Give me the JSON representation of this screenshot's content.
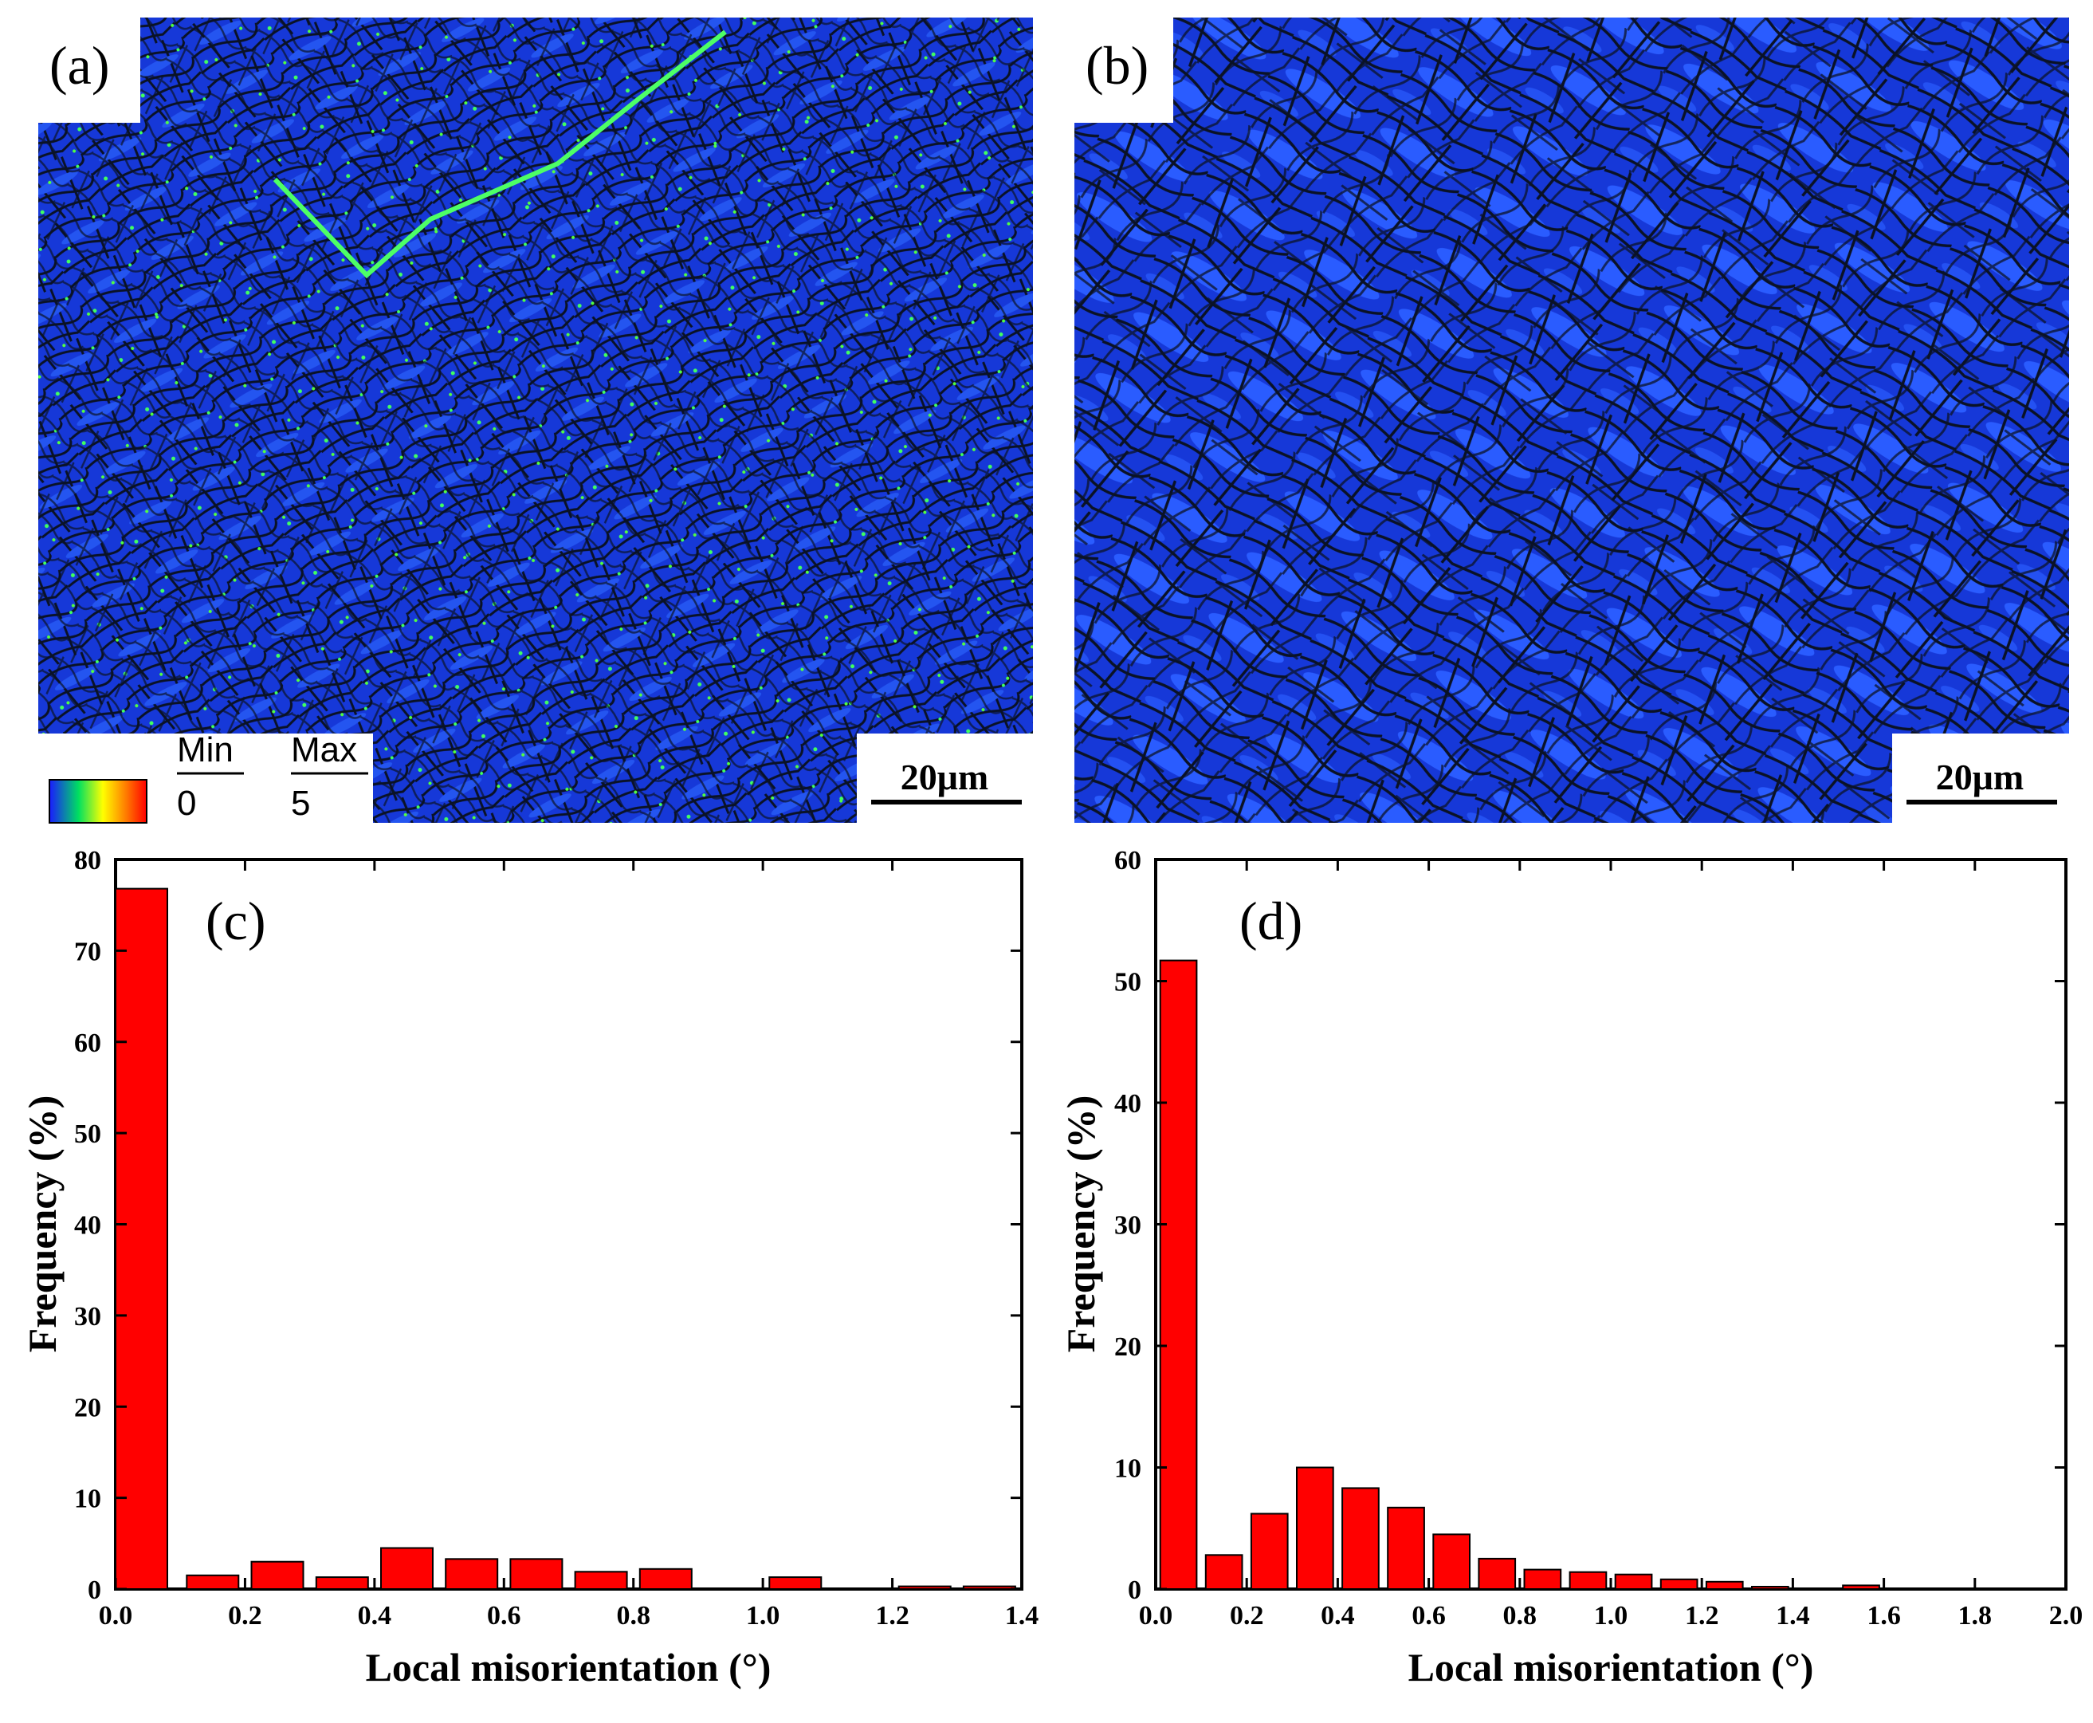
{
  "maps": [
    {
      "label": "(a)",
      "scale_bar": "20μm"
    },
    {
      "label": "(b)",
      "scale_bar": "20μm"
    }
  ],
  "legend": {
    "min_label": "Min",
    "max_label": "Max",
    "min_value": "0",
    "max_value": "5",
    "colors": [
      "#1a1aff",
      "#00e060",
      "#ffff00",
      "#ff8000",
      "#ff0000"
    ]
  },
  "colors": {
    "bar_fill": "#ff0000",
    "bar_stroke": "#000000",
    "map_base": "#1638d8",
    "map_grain": "#2455f0",
    "map_boundary": "#0a1226",
    "map_highlight": "#40ff60"
  },
  "chart_data": [
    {
      "type": "bar",
      "panel_label": "(c)",
      "title": "",
      "xlabel": "Local misorientation (°)",
      "ylabel": "Frequency (%)",
      "xlim": [
        0.0,
        1.4
      ],
      "ylim": [
        0,
        80
      ],
      "x_ticks": [
        "0.0",
        "0.2",
        "0.4",
        "0.6",
        "0.8",
        "1.0",
        "1.2",
        "1.4"
      ],
      "y_ticks": [
        "0",
        "10",
        "20",
        "30",
        "40",
        "50",
        "60",
        "70",
        "80"
      ],
      "bin_width": 0.08,
      "x": [
        0.04,
        0.15,
        0.25,
        0.35,
        0.45,
        0.55,
        0.65,
        0.75,
        0.85,
        1.05,
        1.25,
        1.35
      ],
      "values": [
        76.8,
        1.5,
        3.0,
        1.3,
        4.5,
        3.3,
        3.3,
        1.9,
        2.2,
        1.3,
        0.3,
        0.3
      ]
    },
    {
      "type": "bar",
      "panel_label": "(d)",
      "title": "",
      "xlabel": "Local misorientation (°)",
      "ylabel": "Frequency (%)",
      "xlim": [
        0.0,
        2.0
      ],
      "ylim": [
        0,
        60
      ],
      "x_ticks": [
        "0.0",
        "0.2",
        "0.4",
        "0.6",
        "0.8",
        "1.0",
        "1.2",
        "1.4",
        "1.6",
        "1.8",
        "2.0"
      ],
      "y_ticks": [
        "0",
        "10",
        "20",
        "30",
        "40",
        "50",
        "60"
      ],
      "bin_width": 0.08,
      "x": [
        0.05,
        0.15,
        0.25,
        0.35,
        0.45,
        0.55,
        0.65,
        0.75,
        0.85,
        0.95,
        1.05,
        1.15,
        1.25,
        1.35,
        1.55
      ],
      "values": [
        51.7,
        2.8,
        6.2,
        10.0,
        8.3,
        6.7,
        4.5,
        2.5,
        1.6,
        1.4,
        1.2,
        0.8,
        0.6,
        0.2,
        0.3
      ]
    }
  ]
}
